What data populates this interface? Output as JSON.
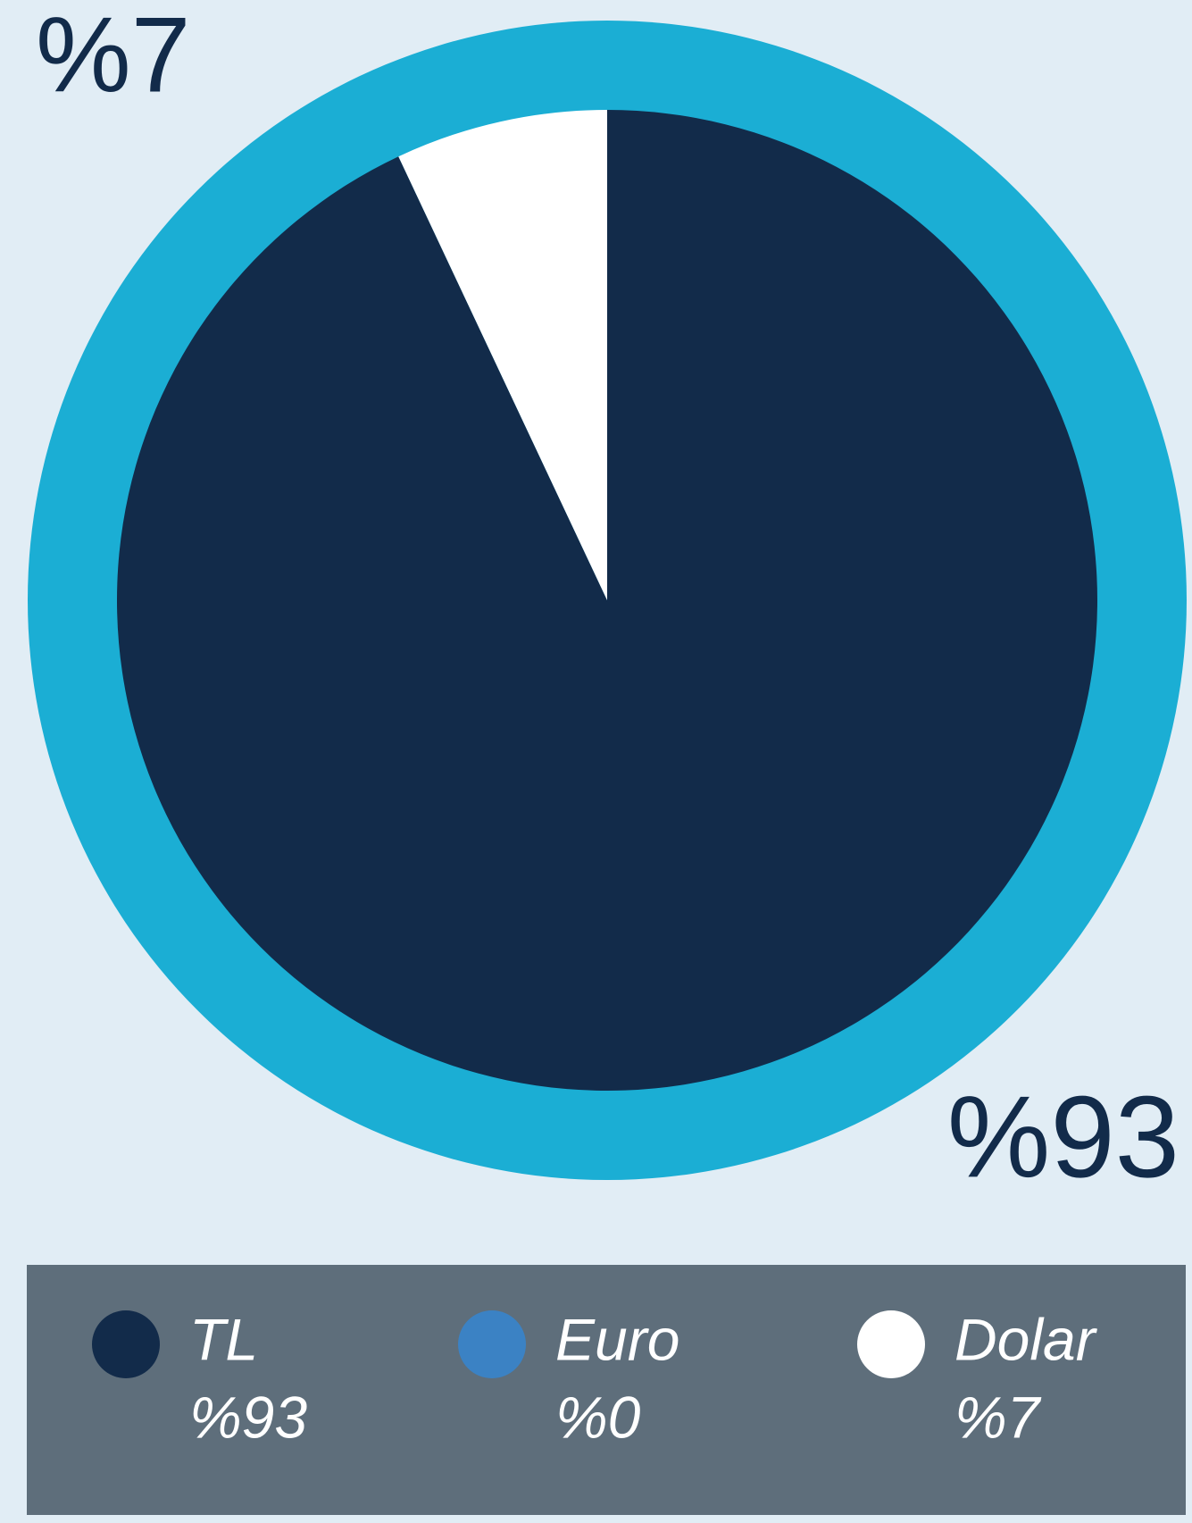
{
  "chart_data": {
    "type": "pie",
    "categories": [
      "TL",
      "Euro",
      "Dolar"
    ],
    "values": [
      93,
      0,
      7
    ],
    "value_labels": [
      "%93",
      "%0",
      "%7"
    ],
    "colors": [
      "#122b4a",
      "#3b82c4",
      "#ffffff"
    ]
  }
}
